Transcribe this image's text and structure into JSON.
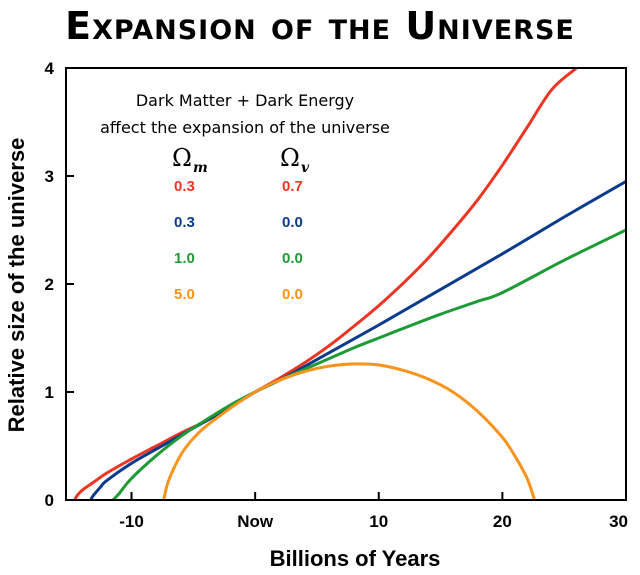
{
  "chart_data": {
    "type": "line",
    "title": "Expansion of the Universe",
    "xlabel": "Billions of Years",
    "ylabel": "Relative size of the universe",
    "xlim": [
      -15.3,
      30
    ],
    "ylim": [
      0,
      4
    ],
    "x_ticks": [
      {
        "value": -10,
        "label": "-10"
      },
      {
        "value": 0,
        "label": "Now"
      },
      {
        "value": 10,
        "label": "10"
      },
      {
        "value": 20,
        "label": "20"
      },
      {
        "value": 30,
        "label": "30"
      }
    ],
    "y_ticks": [
      {
        "value": 0,
        "label": "0"
      },
      {
        "value": 1,
        "label": "1"
      },
      {
        "value": 2,
        "label": "2"
      },
      {
        "value": 3,
        "label": "3"
      },
      {
        "value": 4,
        "label": "4"
      }
    ],
    "annotation": [
      "Dark Matter + Dark Energy",
      "affect the expansion of the universe"
    ],
    "legend": {
      "omega_symbol": "Ω",
      "col1_sub": "m",
      "col2_sub": "v"
    },
    "series": [
      {
        "name": "Ωm 0.3, Ωv 0.7",
        "omega_m": "0.3",
        "omega_v": "0.7",
        "color": "#ee3524",
        "x": [
          -14.6,
          -14.4,
          -14.0,
          -13.0,
          -12.0,
          -10.0,
          -8.0,
          -6.0,
          -4.0,
          -2.0,
          0.0,
          2.0,
          4.0,
          6.0,
          8.0,
          10.0,
          12.0,
          14.0,
          16.0,
          18.0,
          20.0,
          22.0,
          24.0,
          26.0
        ],
        "y": [
          0.0,
          0.04,
          0.09,
          0.17,
          0.25,
          0.38,
          0.5,
          0.62,
          0.73,
          0.86,
          1.0,
          1.13,
          1.27,
          1.43,
          1.61,
          1.8,
          2.01,
          2.24,
          2.5,
          2.78,
          3.1,
          3.45,
          3.8,
          4.0
        ]
      },
      {
        "name": "Ωm 0.3, Ωv 0.0",
        "omega_m": "0.3",
        "omega_v": "0.0",
        "color": "#0b3c8c",
        "x": [
          -13.3,
          -13.1,
          -12.5,
          -12.0,
          -10.0,
          -8.0,
          -6.0,
          -4.0,
          -2.0,
          0.0,
          2.0,
          5.0,
          10.0,
          15.0,
          20.0,
          25.0,
          30.0
        ],
        "y": [
          0.0,
          0.04,
          0.12,
          0.18,
          0.34,
          0.47,
          0.6,
          0.73,
          0.86,
          1.0,
          1.11,
          1.3,
          1.62,
          1.95,
          2.28,
          2.62,
          2.95
        ]
      },
      {
        "name": "Ωm 1.0, Ωv 0.0",
        "omega_m": "1.0",
        "omega_v": "0.0",
        "color": "#1e9a36",
        "x": [
          -11.5,
          -11.0,
          -10.0,
          -8.0,
          -6.0,
          -4.0,
          -2.0,
          0.0,
          2.0,
          4.0,
          6.0,
          8.0,
          10.0,
          12.0,
          15.0,
          18.0,
          20.0,
          25.0,
          30.0
        ],
        "y": [
          0.0,
          0.06,
          0.2,
          0.41,
          0.59,
          0.74,
          0.88,
          1.0,
          1.11,
          1.21,
          1.31,
          1.41,
          1.5,
          1.59,
          1.72,
          1.84,
          1.92,
          2.22,
          2.5
        ]
      },
      {
        "name": "Ωm 5.0, Ωv 0.0",
        "omega_m": "5.0",
        "omega_v": "0.0",
        "color": "#f7941d",
        "x": [
          -7.4,
          -7.0,
          -6.0,
          -5.0,
          -4.0,
          -2.0,
          0.0,
          2.0,
          4.0,
          6.0,
          8.0,
          10.0,
          12.0,
          14.0,
          16.0,
          18.0,
          20.0,
          21.0,
          22.0,
          22.6
        ],
        "y": [
          0.0,
          0.18,
          0.42,
          0.57,
          0.68,
          0.85,
          1.0,
          1.11,
          1.19,
          1.24,
          1.26,
          1.25,
          1.2,
          1.12,
          1.0,
          0.82,
          0.58,
          0.41,
          0.2,
          0.0
        ]
      }
    ]
  }
}
